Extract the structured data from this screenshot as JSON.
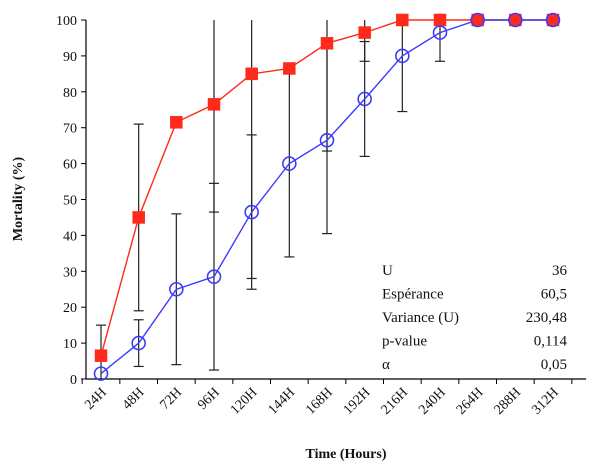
{
  "chart_data": {
    "type": "line",
    "xlabel": "Time (Hours)",
    "ylabel": "Mortality (%)",
    "ylim": [
      0,
      100
    ],
    "y_ticks": [
      0,
      10,
      20,
      30,
      40,
      50,
      60,
      70,
      80,
      90,
      100
    ],
    "x_tick_labels": [
      "24H",
      "48H",
      "72H",
      "96H",
      "120H",
      "144H",
      "168H",
      "192H",
      "216H",
      "240H",
      "264H",
      "288H",
      "312H"
    ],
    "grid": false,
    "legend": "none",
    "series": [
      {
        "color": "#ff2a1a",
        "marker": "filled-square",
        "x": [
          24,
          48,
          72,
          96,
          120,
          144,
          168,
          192,
          216,
          240,
          264,
          288,
          312
        ],
        "y": [
          6.5,
          45,
          71.5,
          76.5,
          85,
          86.5,
          93.5,
          96.5,
          100,
          100,
          100,
          100,
          100
        ],
        "error": [
          null,
          26,
          null,
          30,
          57,
          null,
          30,
          8,
          null,
          null,
          null,
          null,
          null
        ]
      },
      {
        "color": "#3b3bff",
        "marker": "open-circle",
        "x": [
          24,
          48,
          72,
          96,
          120,
          144,
          168,
          192,
          216,
          240,
          264,
          288,
          312
        ],
        "y": [
          1.5,
          10,
          25,
          28.5,
          46.5,
          60,
          66.5,
          78,
          90,
          96.5,
          100,
          100,
          100
        ],
        "error": [
          13.5,
          6.5,
          21,
          26,
          21.5,
          26,
          26,
          16,
          15.5,
          8,
          null,
          null,
          null
        ]
      }
    ],
    "annotation_table": [
      {
        "label": "U",
        "value": "36"
      },
      {
        "label": "Espérance",
        "value": "60,5"
      },
      {
        "label": "Variance (U)",
        "value": "230,48"
      },
      {
        "label": "p-value",
        "value": "0,114"
      },
      {
        "label": "α",
        "value": "0,05"
      }
    ]
  }
}
